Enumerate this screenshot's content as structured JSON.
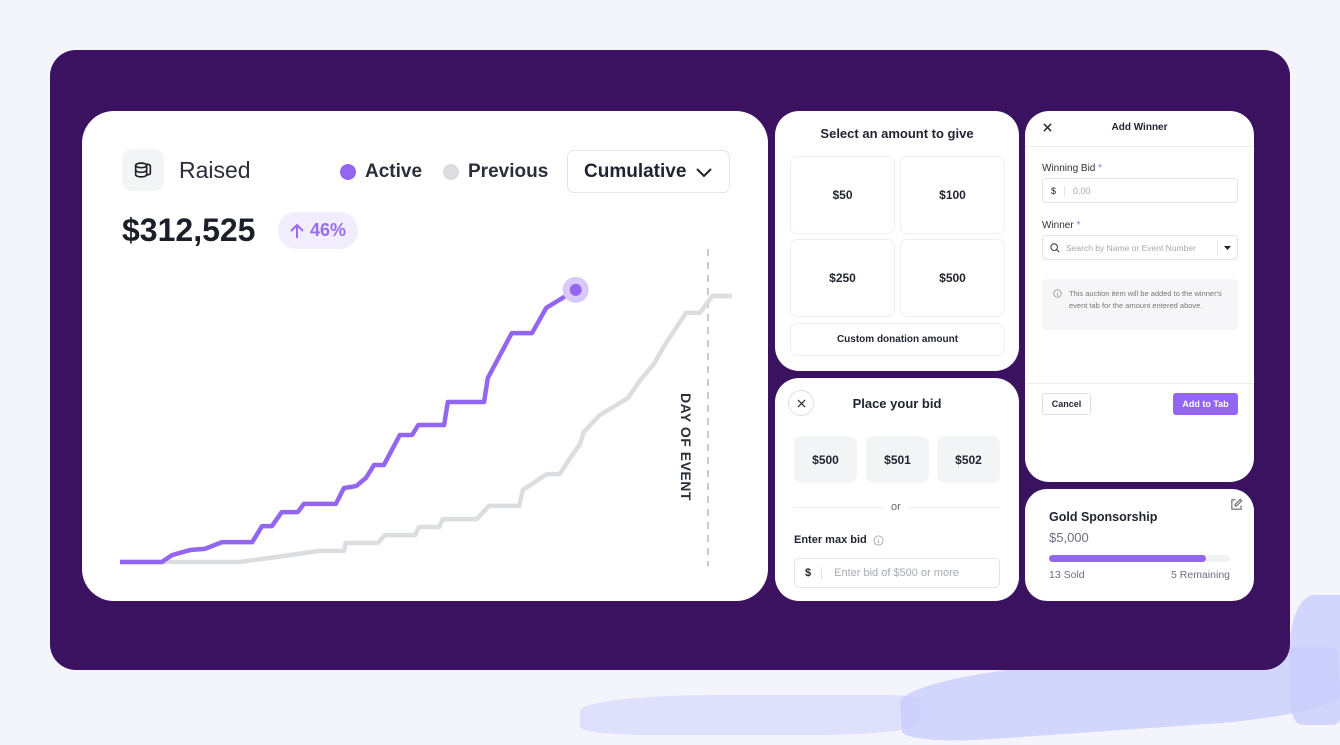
{
  "raised_card": {
    "title": "Raised",
    "icon": "coins-stack-icon",
    "total": "$312,525",
    "change": "46%",
    "change_icon": "arrow-up-icon",
    "legend": [
      {
        "label": "Active",
        "color": "#9366f2"
      },
      {
        "label": "Previous",
        "color": "#dcdde1"
      }
    ],
    "view_select": "Cumulative",
    "marker_label": "DAY OF EVENT"
  },
  "chart_data": {
    "type": "line",
    "title": "",
    "xlabel": "",
    "ylabel": "",
    "grid": false,
    "legend_position": "top-right",
    "event_marker_x": 95.6,
    "series": [
      {
        "name": "Active",
        "color": "#9366f2",
        "x": [
          0,
          6.8,
          8.5,
          11.4,
          13.8,
          16.6,
          21.5,
          23.1,
          24.7,
          26.3,
          28.9,
          29.9,
          35.1,
          36.4,
          38.4,
          40,
          41.3,
          42.9,
          45.5,
          47.5,
          48.5,
          52.7,
          53.3,
          59.2,
          59.8,
          63.7,
          67,
          69.3,
          74.1
        ],
        "y": [
          0,
          0,
          2.4,
          4.1,
          4.5,
          6.8,
          6.8,
          12.3,
          12.3,
          17.1,
          17.1,
          19.9,
          19.9,
          25.3,
          26,
          28.8,
          33.2,
          33.2,
          43.5,
          43.5,
          46.9,
          46.9,
          54.8,
          54.8,
          63,
          78.4,
          78.4,
          87,
          93.2
        ]
      },
      {
        "name": "Previous",
        "color": "#dcdde1",
        "x": [
          0,
          19.5,
          32.5,
          36.4,
          36.7,
          41.9,
          43.1,
          48,
          48.6,
          51.9,
          52.5,
          58,
          60,
          64.9,
          65.5,
          69.4,
          71.5,
          73.2,
          74.8,
          75.4,
          78,
          82.6,
          84.6,
          86.8,
          88.5,
          92,
          94.3,
          96.3,
          99.5
        ],
        "y": [
          0,
          0,
          3.8,
          3.8,
          6.5,
          6.5,
          9.2,
          9.2,
          12,
          12,
          14.7,
          14.7,
          19.2,
          19.2,
          24.7,
          30.1,
          30.1,
          35.6,
          40.4,
          44.5,
          50.3,
          56.2,
          62.3,
          67.8,
          74,
          85.3,
          85.3,
          91.1,
          91.1
        ]
      }
    ]
  },
  "give_card": {
    "title": "Select an amount to give",
    "amounts": [
      "$50",
      "$100",
      "$250",
      "$500"
    ],
    "custom": "Custom donation amount"
  },
  "bid_card": {
    "title": "Place your bid",
    "amounts": [
      "$500",
      "$501",
      "$502"
    ],
    "or": "or",
    "max_label": "Enter max bid",
    "currency": "$",
    "placeholder": "Enter bid of $500 or more"
  },
  "winner_card": {
    "title": "Add Winner",
    "bid_label": "Winning Bid",
    "required": "*",
    "currency": "$",
    "bid_placeholder": "0.00",
    "winner_label": "Winner",
    "search_placeholder": "Search by Name or Event Number",
    "info": "This auction item will be added to the winner's event tab for the amount entered above.",
    "cancel": "Cancel",
    "submit": "Add to Tab"
  },
  "sponsor_card": {
    "title": "Gold Sponsorship",
    "price": "$5,000",
    "sold": "13 Sold",
    "remaining": "5 Remaining",
    "progress": 0.87,
    "accent": "#9366f2"
  }
}
